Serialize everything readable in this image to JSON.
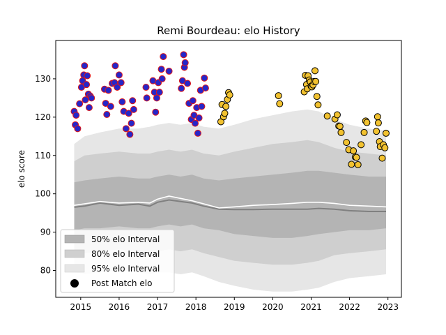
{
  "chart_data": {
    "type": "scatter",
    "title": "Remi Bourdeau: elo History",
    "xlabel": "",
    "ylabel": "elo score",
    "xlim": [
      2014.35,
      2023.35
    ],
    "ylim": [
      73,
      140
    ],
    "x_ticks": [
      2015,
      2016,
      2017,
      2018,
      2019,
      2020,
      2021,
      2022,
      2023
    ],
    "x_tick_labels": [
      "2015",
      "2016",
      "2017",
      "2018",
      "2019",
      "2020",
      "2021",
      "2022",
      "2023"
    ],
    "y_ticks": [
      80,
      90,
      100,
      110,
      120,
      130
    ],
    "y_tick_labels": [
      "80",
      "90",
      "100",
      "110",
      "120",
      "130"
    ],
    "grid": false,
    "legend": {
      "placement": "lower-left",
      "entries": [
        "50% elo Interval",
        "80% elo Interval",
        "95% elo Interval",
        "Post Match elo"
      ]
    },
    "colors": {
      "band95": "#e6e6e6",
      "band80": "#cfcfcf",
      "band50": "#b4b4b4",
      "mean_line": "#808080",
      "median_line": "#ffffff",
      "point_early_fill": "#2626c8",
      "point_early_edge": "#e01818",
      "point_late_fill": "#f2c230",
      "point_late_edge": "#000000"
    },
    "bands": {
      "x": [
        2014.83,
        2015.1,
        2015.5,
        2016.0,
        2016.5,
        2016.8,
        2017.0,
        2017.3,
        2017.6,
        2017.9,
        2018.2,
        2018.6,
        2019.0,
        2019.5,
        2020.0,
        2020.5,
        2020.9,
        2021.2,
        2021.6,
        2022.0,
        2022.5,
        2022.95
      ],
      "lo95": [
        79.5,
        79.0,
        79.5,
        80.0,
        79.5,
        79.0,
        79.5,
        79.5,
        79.0,
        79.5,
        78.5,
        77.0,
        76.0,
        75.0,
        74.5,
        74.5,
        75.0,
        75.5,
        77.0,
        78.0,
        78.5,
        79.0
      ],
      "lo80": [
        84.0,
        84.5,
        85.0,
        85.5,
        85.0,
        84.5,
        85.0,
        85.5,
        85.0,
        85.5,
        84.5,
        83.5,
        82.5,
        82.0,
        81.5,
        81.5,
        82.0,
        82.5,
        84.0,
        84.5,
        85.0,
        85.5
      ],
      "lo50": [
        90.5,
        91.0,
        91.0,
        91.5,
        91.0,
        91.0,
        91.5,
        92.0,
        91.5,
        92.0,
        91.0,
        90.5,
        89.5,
        89.0,
        88.5,
        88.5,
        89.0,
        89.5,
        90.0,
        90.5,
        90.5,
        91.0
      ],
      "hi50": [
        103.0,
        103.5,
        104.0,
        104.5,
        104.0,
        104.0,
        104.5,
        105.0,
        104.5,
        105.0,
        104.0,
        103.5,
        104.0,
        104.5,
        105.0,
        105.5,
        106.0,
        106.0,
        105.5,
        105.0,
        104.5,
        104.5
      ],
      "hi80": [
        108.5,
        110.0,
        110.5,
        111.0,
        110.5,
        110.5,
        111.0,
        111.5,
        111.0,
        111.5,
        110.5,
        110.0,
        111.0,
        112.0,
        113.0,
        113.5,
        114.0,
        113.5,
        112.0,
        111.0,
        110.5,
        110.0
      ],
      "hi95": [
        113.0,
        115.0,
        116.0,
        117.0,
        117.0,
        117.5,
        118.0,
        118.5,
        118.0,
        118.5,
        117.5,
        117.0,
        118.0,
        119.5,
        120.5,
        121.5,
        122.0,
        121.5,
        119.5,
        118.0,
        117.0,
        116.5
      ],
      "mean": [
        96.5,
        96.8,
        97.6,
        97.0,
        97.3,
        96.8,
        97.8,
        98.4,
        98.0,
        97.6,
        96.8,
        96.0,
        95.9,
        95.9,
        96.0,
        96.0,
        96.0,
        96.2,
        96.0,
        95.6,
        95.4,
        95.4
      ],
      "median": [
        97.0,
        97.4,
        98.0,
        97.6,
        97.8,
        97.6,
        98.6,
        99.4,
        98.8,
        98.2,
        97.4,
        96.3,
        96.6,
        97.0,
        97.2,
        97.5,
        97.8,
        97.8,
        97.5,
        97.0,
        96.8,
        96.6
      ]
    },
    "series": [
      {
        "x": [
          2014.83,
          2014.86,
          2014.88,
          2014.92,
          2014.97,
          2015.02,
          2015.05,
          2015.08,
          2015.1,
          2015.12,
          2015.15,
          2015.17,
          2015.2,
          2015.22,
          2015.25,
          2015.28,
          2015.62,
          2015.65,
          2015.68,
          2015.72,
          2015.78,
          2015.82,
          2015.88,
          2015.9,
          2015.95,
          2016.0,
          2016.05,
          2016.08,
          2016.12,
          2016.18,
          2016.25,
          2016.28,
          2016.32,
          2016.35,
          2016.38,
          2016.7,
          2016.72,
          2016.88,
          2016.92,
          2016.95,
          2016.98,
          2017.02,
          2017.05,
          2017.1,
          2017.12,
          2017.15,
          2017.3,
          2017.62,
          2017.65,
          2017.68,
          2017.7,
          2017.72,
          2017.78,
          2017.82,
          2017.88,
          2017.92,
          2017.95,
          2017.98,
          2018.02,
          2018.05,
          2018.08,
          2018.12,
          2018.15,
          2018.22,
          2018.25
        ],
        "values": [
          121.5,
          118.0,
          120.5,
          117.0,
          123.5,
          127.8,
          129.5,
          131.0,
          133.4,
          124.5,
          128.5,
          130.8,
          126.0,
          122.5,
          125.5,
          125.0,
          127.3,
          123.6,
          120.7,
          127.0,
          122.8,
          128.8,
          129.0,
          133.4,
          127.8,
          131.0,
          129.0,
          124.0,
          121.5,
          117.0,
          121.0,
          115.5,
          118.4,
          124.3,
          122.0,
          127.8,
          125.0,
          129.5,
          126.5,
          121.3,
          125.0,
          129.0,
          126.5,
          132.5,
          130.0,
          135.8,
          132.0,
          127.5,
          129.5,
          136.3,
          133.0,
          134.2,
          128.8,
          123.6,
          119.4,
          124.3,
          120.5,
          118.4,
          122.5,
          115.8,
          119.8,
          127.0,
          122.8,
          130.2,
          127.6
        ]
      },
      {
        "x": [
          2018.65,
          2018.68,
          2018.72,
          2018.75,
          2018.78,
          2018.82,
          2018.85,
          2018.88,
          2020.15,
          2020.18,
          2020.82,
          2020.85,
          2020.88,
          2020.9,
          2020.92,
          2020.95,
          2020.98,
          2021.0,
          2021.02,
          2021.05,
          2021.08,
          2021.1,
          2021.12,
          2021.15,
          2021.18,
          2021.42,
          2021.62,
          2021.68,
          2021.72,
          2021.75,
          2021.78,
          2021.92,
          2021.98,
          2022.05,
          2022.1,
          2022.15,
          2022.18,
          2022.22,
          2022.3,
          2022.38,
          2022.42,
          2022.45,
          2022.7,
          2022.73,
          2022.75,
          2022.78,
          2022.8,
          2022.85,
          2022.88,
          2022.92,
          2022.95
        ],
        "values": [
          118.8,
          123.3,
          120.1,
          121.0,
          122.8,
          124.6,
          126.4,
          125.8,
          125.6,
          123.5,
          126.6,
          130.9,
          128.5,
          127.4,
          130.8,
          129.7,
          129.2,
          128.1,
          127.9,
          128.4,
          129.3,
          132.1,
          129.3,
          125.4,
          123.2,
          120.3,
          119.5,
          120.6,
          117.7,
          117.6,
          116.0,
          113.4,
          111.5,
          107.7,
          111.2,
          109.6,
          109.5,
          107.6,
          112.8,
          116.0,
          119.0,
          118.6,
          116.3,
          120.1,
          118.5,
          113.6,
          112.3,
          109.3,
          112.8,
          112.0,
          115.8
        ]
      }
    ]
  }
}
